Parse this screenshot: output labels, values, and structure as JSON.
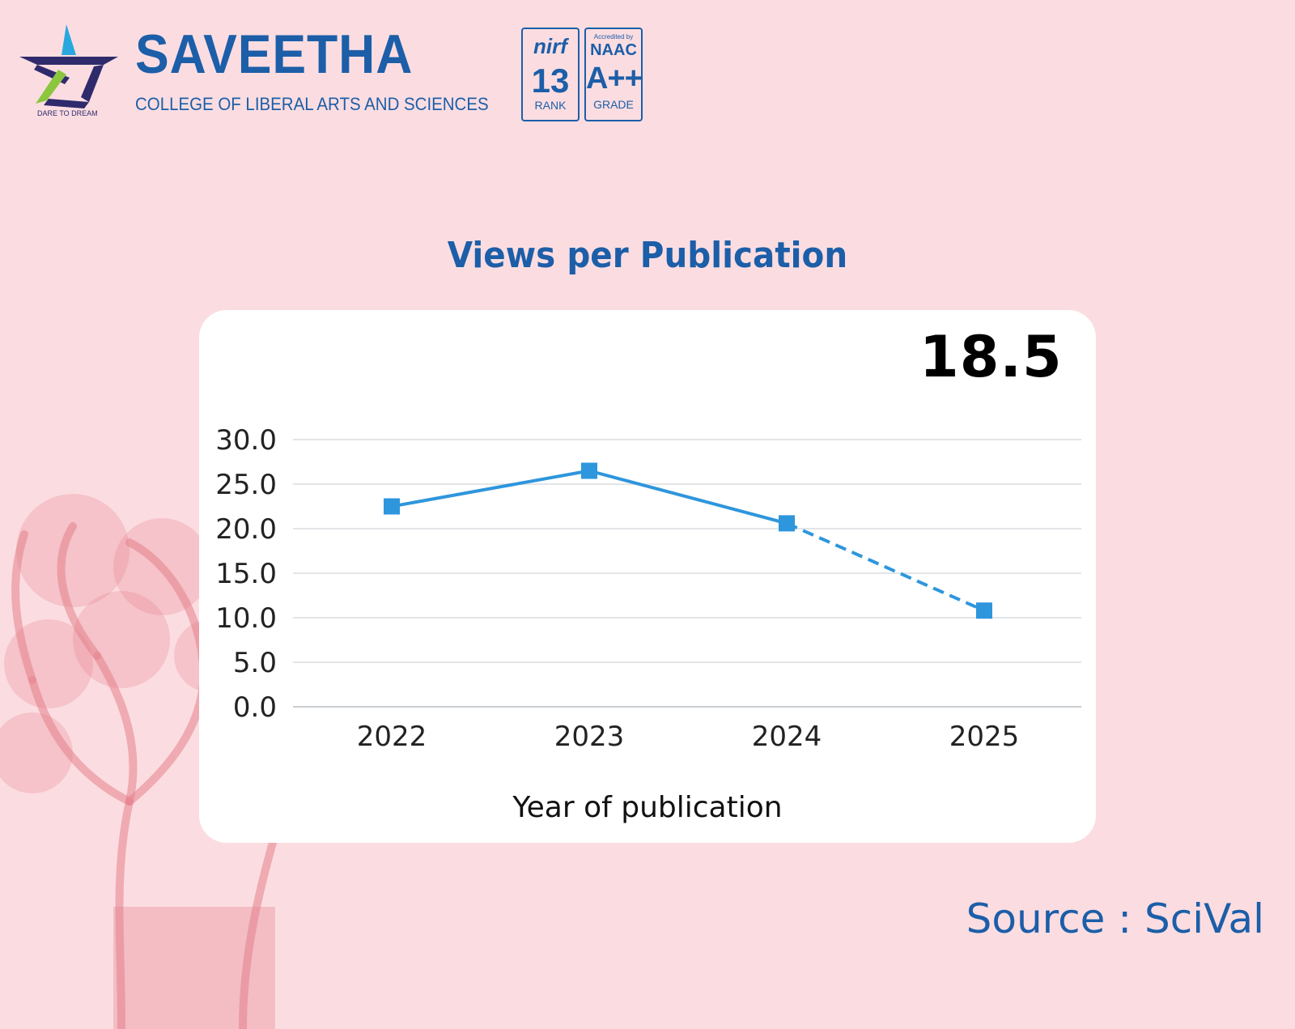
{
  "header": {
    "logo_tagline": "DARE TO DREAM",
    "brand_name": "SAVEETHA",
    "brand_subtitle": "COLLEGE OF LIBERAL ARTS AND SCIENCES",
    "nirf_badge": {
      "logo": "nirf",
      "rank": "13",
      "label": "RANK"
    },
    "naac_badge": {
      "accredited": "Accredited by",
      "name": "NAAC",
      "grade": "A++",
      "label": "GRADE"
    }
  },
  "title": "Views per Publication",
  "kpi_value": "18.5",
  "source": "Source : SciVal",
  "colors": {
    "brand": "#1c5ea8",
    "series": "#2e96dc",
    "background": "#fbdde1"
  },
  "chart_data": {
    "type": "line",
    "title": "Views per Publication",
    "xlabel": "Year of publication",
    "ylabel": "",
    "categories": [
      "2022",
      "2023",
      "2024",
      "2025"
    ],
    "series": [
      {
        "values": [
          22.5,
          26.5,
          20.6,
          10.8
        ],
        "dashed_from_index": 2
      }
    ],
    "ylim": [
      0,
      30
    ],
    "yticks": [
      "0.0",
      "5.0",
      "10.0",
      "15.0",
      "20.0",
      "25.0",
      "30.0"
    ],
    "grid": true,
    "legend": "none"
  }
}
